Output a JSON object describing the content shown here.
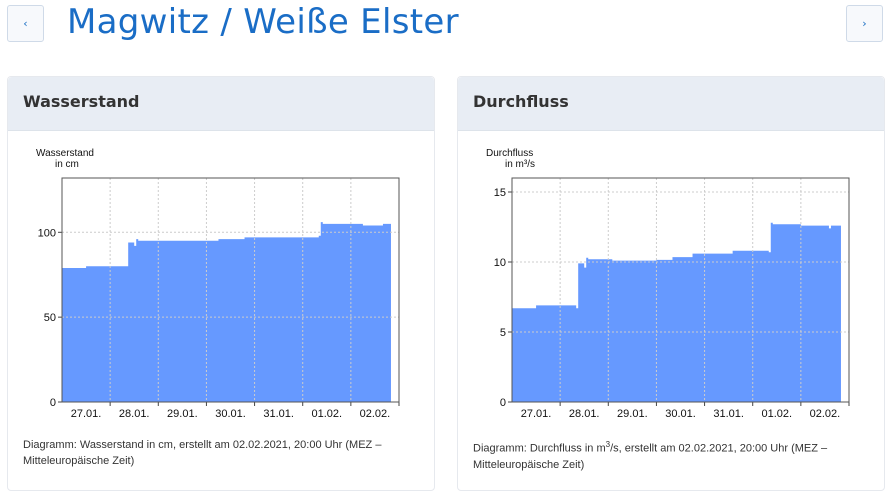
{
  "header": {
    "title": "Magwitz / Weiße Elster",
    "prev_icon": "chevron-left-icon",
    "next_icon": "chevron-right-icon"
  },
  "cards": [
    {
      "title": "Wasserstand",
      "caption_pre": "Diagramm: Wasserstand in cm, erstellt am 02.02.2021, 20:00 Uhr (MEZ – Mitteleuropäische Zeit)",
      "caption_sup": ""
    },
    {
      "title": "Durchfluss",
      "caption_pre": "Diagramm: Durchfluss in m",
      "caption_sup": "3",
      "caption_post": "/s, erstellt am 02.02.2021, 20:00 Uhr (MEZ – Mitteleuropäische Zeit)"
    }
  ],
  "colors": {
    "fill": "#6699ff",
    "title": "#1a6dc6",
    "header_bg": "#e8edf4"
  },
  "chart_data": [
    {
      "type": "area",
      "ylabel_lines": [
        "Wasserstand",
        "in cm"
      ],
      "ylim": [
        0,
        132
      ],
      "yticks": [
        0,
        50,
        100
      ],
      "xlabel_unit": "hours since 27.01. 00:00",
      "xlim": [
        0,
        168
      ],
      "xticks": [
        "27.01.",
        "28.01.",
        "29.01.",
        "30.01.",
        "31.01.",
        "01.02.",
        "02.02."
      ],
      "x": [
        0,
        11,
        12,
        32,
        33,
        36,
        37,
        38,
        72,
        78,
        90,
        91,
        110,
        128,
        129,
        130,
        144,
        150,
        158,
        160,
        164
      ],
      "y": [
        79,
        79,
        80,
        80,
        94,
        92,
        96,
        95,
        95,
        96,
        96,
        97,
        97,
        98,
        106,
        105,
        105,
        104,
        104,
        105,
        105
      ]
    },
    {
      "type": "area",
      "ylabel_lines": [
        "Durchfluss",
        "in m³/s"
      ],
      "ylim": [
        0,
        16
      ],
      "yticks": [
        0,
        5,
        10,
        15
      ],
      "xlabel_unit": "hours since 27.01. 00:00",
      "xlim": [
        0,
        168
      ],
      "xticks": [
        "27.01.",
        "28.01.",
        "29.01.",
        "30.01.",
        "31.01.",
        "01.02.",
        "02.02."
      ],
      "x": [
        0,
        11,
        12,
        32,
        33,
        36,
        37,
        38,
        50,
        72,
        80,
        90,
        110,
        128,
        129,
        130,
        144,
        158,
        159,
        160,
        164
      ],
      "y": [
        6.7,
        6.7,
        6.9,
        6.7,
        9.9,
        9.6,
        10.3,
        10.2,
        10.1,
        10.15,
        10.35,
        10.6,
        10.8,
        10.7,
        12.8,
        12.7,
        12.6,
        12.4,
        12.6,
        12.6,
        12.6
      ]
    }
  ]
}
